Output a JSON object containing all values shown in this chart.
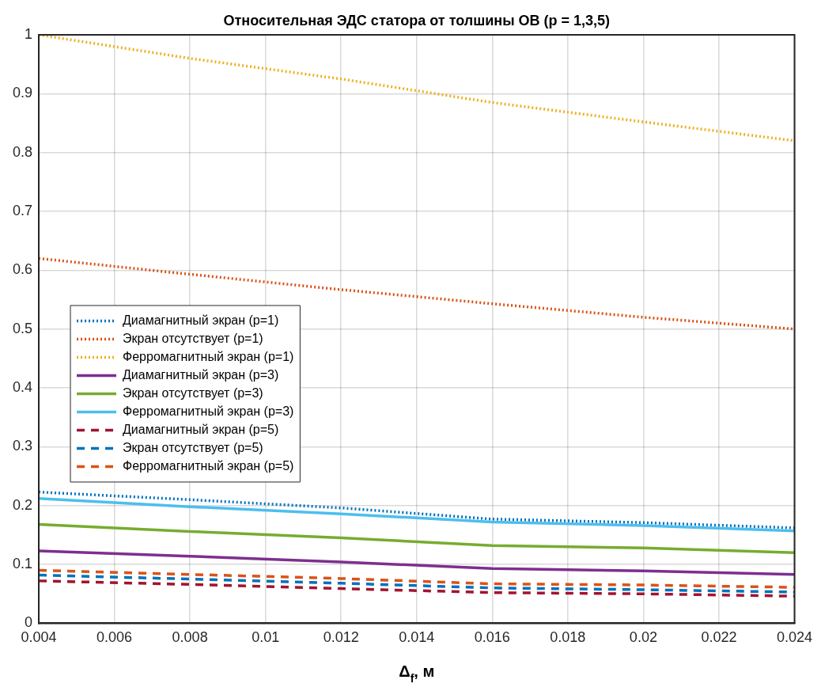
{
  "chart_data": {
    "type": "line",
    "title": "Относительная ЭДС статора от толшины ОВ (p = 1,3,5)",
    "xlabel": "Δ$_{f}$, м",
    "x": [
      0.004,
      0.008,
      0.012,
      0.016,
      0.02,
      0.024
    ],
    "xlim": [
      0.004,
      0.024
    ],
    "xticks": [
      0.004,
      0.006,
      0.008,
      0.01,
      0.012,
      0.014,
      0.016,
      0.018,
      0.02,
      0.022,
      0.024
    ],
    "ylim": [
      0,
      1
    ],
    "yticks": [
      0,
      0.1,
      0.2,
      0.3,
      0.4,
      0.5,
      0.6,
      0.7,
      0.8,
      0.9,
      1
    ],
    "grid": true,
    "legend": "left",
    "marker": "none",
    "series": [
      {
        "name": "Диамагнитный экран (p=1)",
        "color": "#0072bd",
        "line_style": "dotted",
        "values": [
          0.223,
          0.21,
          0.196,
          0.177,
          0.171,
          0.162
        ]
      },
      {
        "name": "Экран отсутствует (p=1)",
        "color": "#d95319",
        "line_style": "dotted",
        "values": [
          0.62,
          0.593,
          0.567,
          0.543,
          0.52,
          0.5
        ]
      },
      {
        "name": "Ферромагнитный экран (p=1)",
        "color": "#edb120",
        "line_style": "dotted",
        "values": [
          1,
          0.96,
          0.925,
          0.885,
          0.852,
          0.82
        ]
      },
      {
        "name": "Диамагнитный экран (p=3)",
        "color": "#7e2f8e",
        "line_style": "solid",
        "values": [
          0.123,
          0.114,
          0.104,
          0.093,
          0.089,
          0.083
        ]
      },
      {
        "name": "Экран отсутствует (p=3)",
        "color": "#77ac30",
        "line_style": "solid",
        "values": [
          0.168,
          0.156,
          0.145,
          0.132,
          0.128,
          0.12
        ]
      },
      {
        "name": "Ферромагнитный экран (p=3)",
        "color": "#4dbeee",
        "line_style": "solid",
        "values": [
          0.212,
          0.198,
          0.186,
          0.172,
          0.166,
          0.157
        ]
      },
      {
        "name": "Диамагнитный экран (p=5)",
        "color": "#a2142f",
        "line_style": "dashed",
        "values": [
          0.072,
          0.066,
          0.059,
          0.052,
          0.05,
          0.046
        ]
      },
      {
        "name": "Экран отсутствует (p=5)",
        "color": "#0072bd",
        "line_style": "dashed",
        "values": [
          0.082,
          0.075,
          0.068,
          0.06,
          0.057,
          0.053
        ]
      },
      {
        "name": "Ферромагнитный экран (p=5)",
        "color": "#d95319",
        "line_style": "dashed",
        "values": [
          0.09,
          0.083,
          0.076,
          0.067,
          0.065,
          0.061
        ]
      }
    ]
  }
}
